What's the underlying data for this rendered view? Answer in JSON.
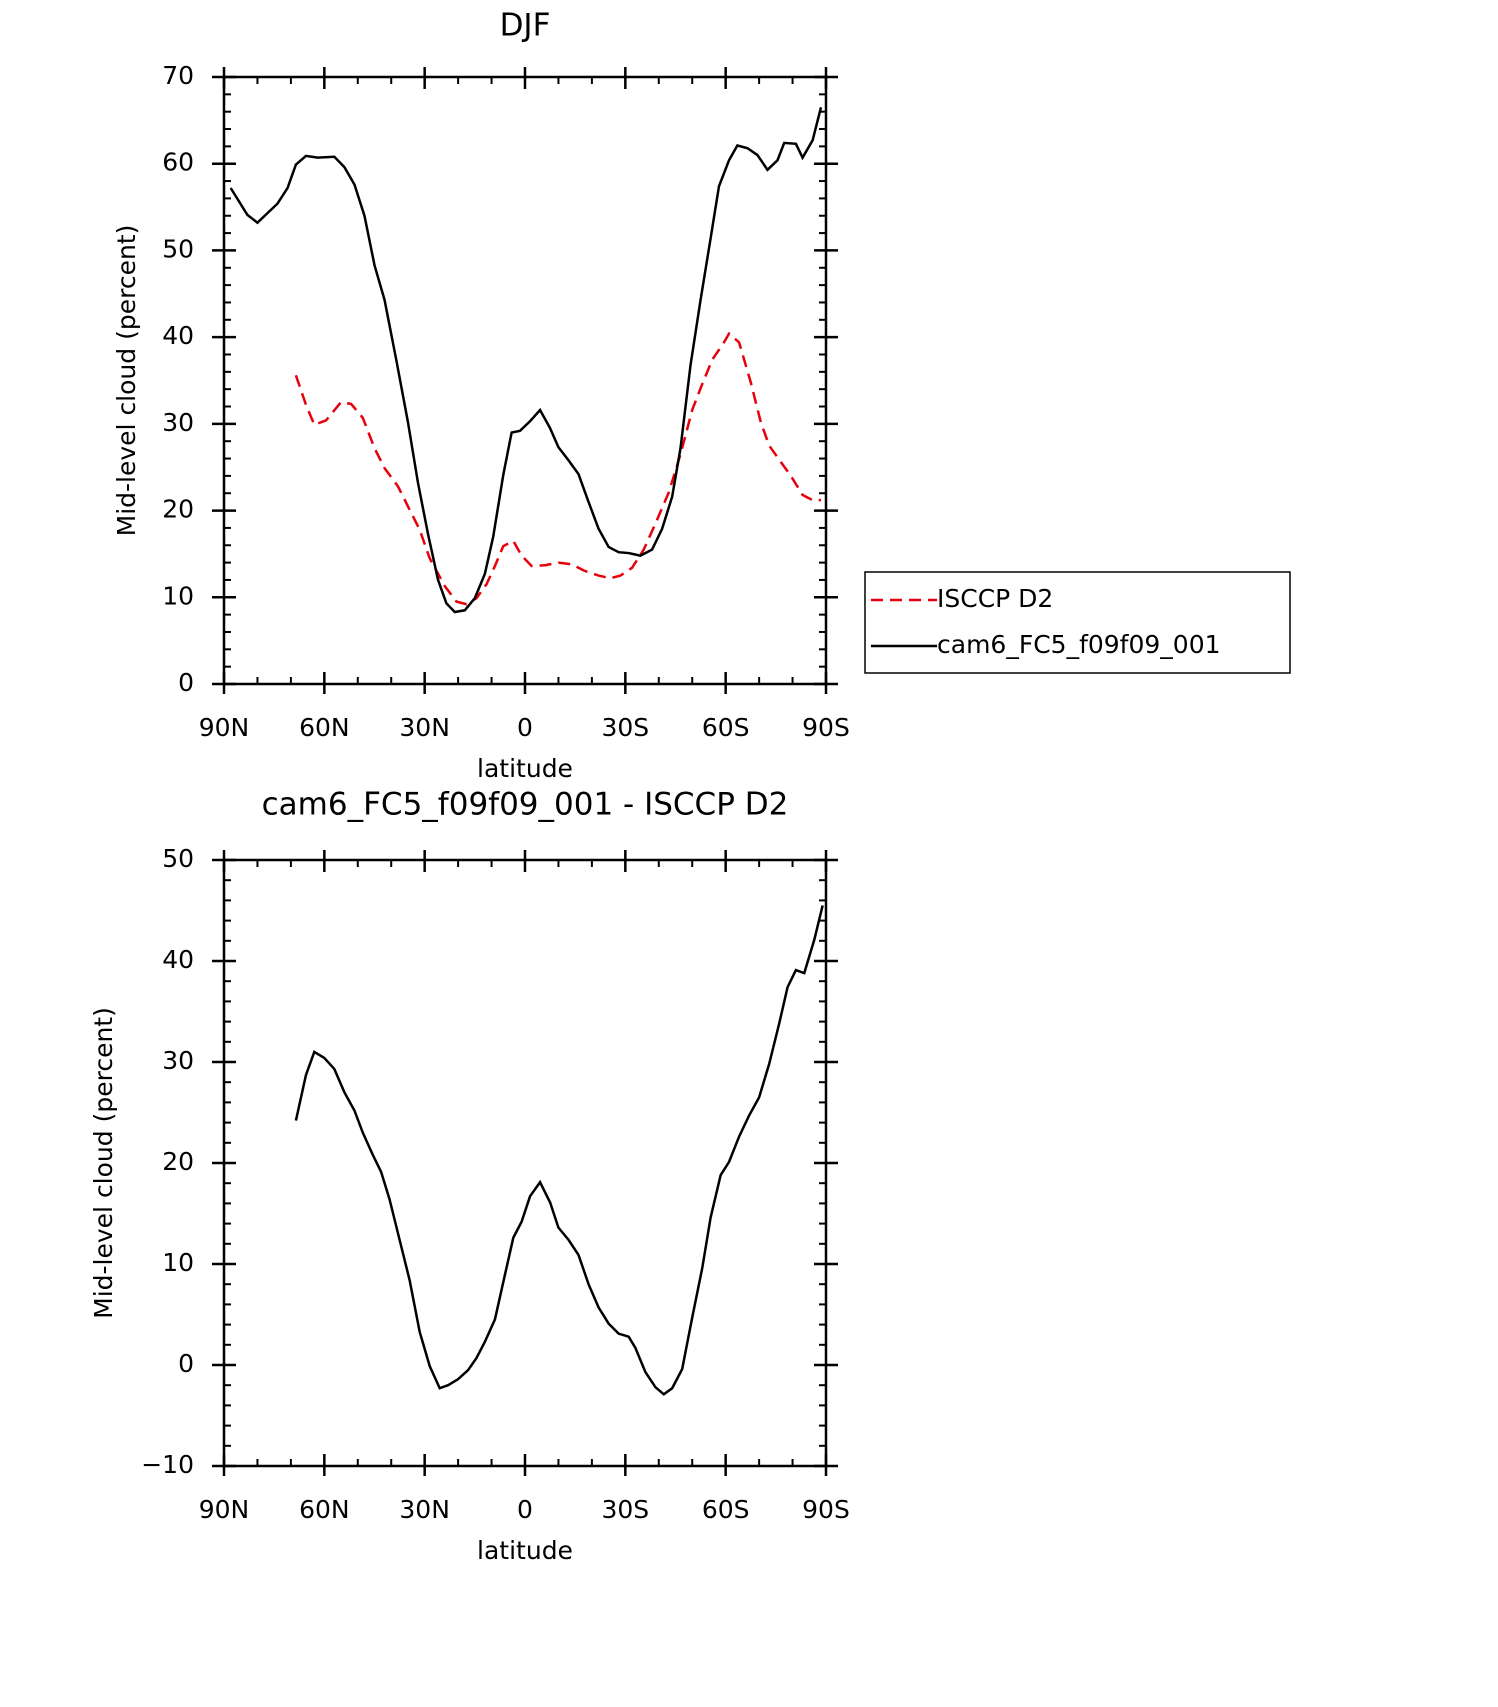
{
  "chart_data": [
    {
      "type": "line",
      "title": "DJF",
      "xlabel": "latitude",
      "ylabel": "Mid-level cloud (percent)",
      "xlim": [
        90,
        -90
      ],
      "xticks": [
        {
          "value": 90,
          "label": "90N"
        },
        {
          "value": 60,
          "label": "60N"
        },
        {
          "value": 30,
          "label": "30N"
        },
        0,
        {
          "value": -30,
          "label": "30S"
        },
        {
          "value": -60,
          "label": "60S"
        },
        {
          "value": -90,
          "label": "90S"
        }
      ],
      "ylim": [
        0,
        70
      ],
      "yticks": [
        0,
        10,
        20,
        30,
        40,
        50,
        60,
        70
      ],
      "legend": "right",
      "series": [
        {
          "name": "ISCCP D2",
          "color": "#e8000b",
          "dashed": true,
          "x": [
            68.5,
            65.5,
            63,
            59.5,
            55,
            52,
            48.5,
            45,
            42,
            38,
            34.5,
            31.5,
            28.5,
            24,
            20.5,
            17.5,
            14.5,
            11.5,
            9,
            6.5,
            3.5,
            1,
            -2,
            -6,
            -10,
            -14,
            -17.5,
            -22,
            -25.5,
            -28.5,
            -32,
            -35.5,
            -39,
            -43,
            -46.5,
            -50,
            -53,
            -56,
            -59.5,
            -61,
            -64,
            -67.5,
            -70.5,
            -73,
            -76.5,
            -79.5,
            -83,
            -86,
            -88.5
          ],
          "values": [
            35.6,
            32.2,
            29.9,
            30.4,
            32.5,
            32.3,
            30.7,
            27.2,
            24.9,
            22.8,
            20.1,
            17.8,
            14.5,
            11.3,
            9.5,
            9.2,
            9.9,
            11.5,
            13.6,
            15.9,
            16.5,
            14.8,
            13.6,
            13.7,
            14.0,
            13.8,
            13.1,
            12.5,
            12.2,
            12.5,
            13.4,
            15.5,
            18.5,
            22.1,
            26.5,
            31.6,
            34.6,
            37.4,
            39.4,
            40.4,
            39.4,
            34.8,
            30.2,
            27.5,
            25.6,
            24.0,
            21.8,
            21.2,
            21.2
          ]
        },
        {
          "name": "cam6_FC5_f09f09_001",
          "color": "#000000",
          "dashed": false,
          "x": [
            88,
            83,
            80,
            77,
            74,
            71,
            68.5,
            65.5,
            62,
            57,
            54,
            51,
            48,
            45,
            42,
            38.5,
            35,
            32,
            29,
            26,
            23.5,
            21,
            18,
            15,
            12,
            9.5,
            6.5,
            4,
            1.5,
            -1.5,
            -4.5,
            -7.5,
            -10,
            -13,
            -16,
            -19,
            -22,
            -25,
            -28,
            -31,
            -34.5,
            -38,
            -41,
            -44,
            -46.5,
            -49.5,
            -52.5,
            -55.5,
            -58,
            -61,
            -63.5,
            -66.5,
            -69.5,
            -72.5,
            -75.5,
            -77.5,
            -81,
            -83,
            -86,
            -88.5
          ],
          "values": [
            57.2,
            54.1,
            53.2,
            54.3,
            55.4,
            57.2,
            59.9,
            60.9,
            60.7,
            60.8,
            59.6,
            57.6,
            54.0,
            48.3,
            44.3,
            37.4,
            30.2,
            23.2,
            17.3,
            12.0,
            9.3,
            8.3,
            8.5,
            9.9,
            12.7,
            17.0,
            24.1,
            29.0,
            29.2,
            30.3,
            31.6,
            29.5,
            27.3,
            25.8,
            24.2,
            21.0,
            17.9,
            15.8,
            15.2,
            15.1,
            14.8,
            15.5,
            17.9,
            21.6,
            27.2,
            36.8,
            44.3,
            51.4,
            57.4,
            60.4,
            62.1,
            61.8,
            61.0,
            59.3,
            60.4,
            62.4,
            62.3,
            60.7,
            62.7,
            66.5
          ]
        }
      ]
    },
    {
      "type": "line",
      "title": "cam6_FC5_f09f09_001 - ISCCP D2",
      "xlabel": "latitude",
      "ylabel": "Mid-level cloud (percent)",
      "xlim": [
        90,
        -90
      ],
      "xticks": [
        {
          "value": 90,
          "label": "90N"
        },
        {
          "value": 60,
          "label": "60N"
        },
        {
          "value": 30,
          "label": "30N"
        },
        0,
        {
          "value": -30,
          "label": "30S"
        },
        {
          "value": -60,
          "label": "60S"
        },
        {
          "value": -90,
          "label": "90S"
        }
      ],
      "ylim": [
        -10,
        50
      ],
      "yticks": [
        {
          "value": -10,
          "label": "−10"
        },
        0,
        10,
        20,
        30,
        40,
        50
      ],
      "series": [
        {
          "color": "#000000",
          "dashed": false,
          "x": [
            68.5,
            65.5,
            63,
            60,
            57,
            54,
            51,
            48.5,
            45.5,
            43,
            40.5,
            37.5,
            34.5,
            31.5,
            28.5,
            25.5,
            23,
            20,
            17,
            14.5,
            12,
            9,
            6.5,
            3.5,
            1,
            -1.5,
            -4.5,
            -7.5,
            -10,
            -13,
            -16,
            -19,
            -22,
            -25,
            -28,
            -31,
            -33,
            -36,
            -39,
            -41.5,
            -44,
            -47,
            -50,
            -53,
            -55.5,
            -58.5,
            -61,
            -64,
            -67,
            -70,
            -73,
            -76,
            -78.5,
            -81,
            -83.5,
            -86.5,
            -89
          ],
          "values": [
            24.2,
            28.7,
            31.0,
            30.4,
            29.3,
            27.0,
            25.2,
            23.0,
            20.8,
            19.1,
            16.4,
            12.4,
            8.4,
            3.3,
            -0.1,
            -2.3,
            -2.0,
            -1.4,
            -0.5,
            0.7,
            2.3,
            4.5,
            8.2,
            12.6,
            14.2,
            16.7,
            18.1,
            16.1,
            13.6,
            12.4,
            10.9,
            8.0,
            5.7,
            4.1,
            3.1,
            2.8,
            1.7,
            -0.7,
            -2.2,
            -2.9,
            -2.3,
            -0.4,
            4.7,
            9.6,
            14.6,
            18.8,
            20.1,
            22.6,
            24.7,
            26.5,
            29.8,
            33.8,
            37.4,
            39.1,
            38.8,
            42.1,
            45.5
          ]
        }
      ]
    }
  ]
}
